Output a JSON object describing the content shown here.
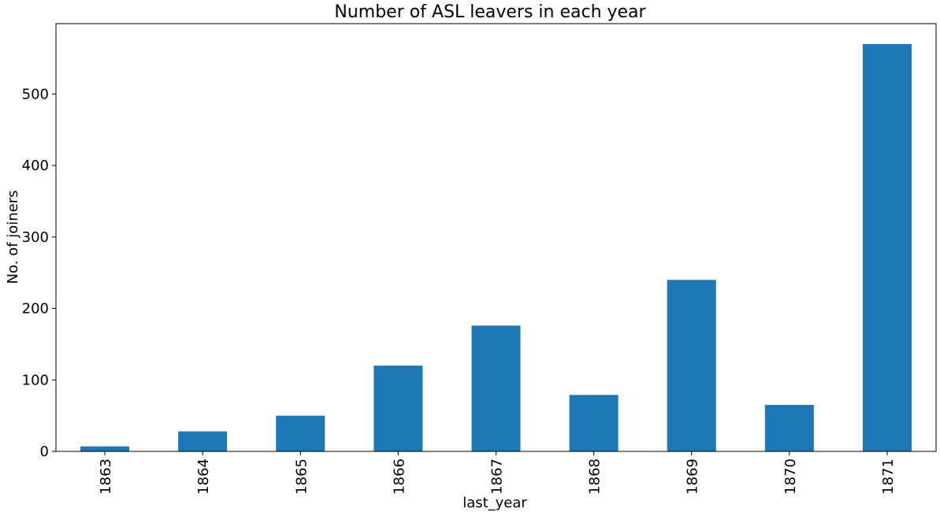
{
  "chart_data": {
    "type": "bar",
    "title": "Number of ASL leavers in each year",
    "xlabel": "last_year",
    "ylabel": "No. of joiners",
    "categories": [
      "1863",
      "1864",
      "1865",
      "1866",
      "1867",
      "1868",
      "1869",
      "1870",
      "1871"
    ],
    "values": [
      7,
      28,
      50,
      120,
      176,
      79,
      240,
      65,
      570
    ],
    "ylim": [
      0,
      598.5
    ],
    "yticks": [
      0,
      100,
      200,
      300,
      400,
      500
    ],
    "bar_color": "#1f77b4",
    "grid": false,
    "legend": false
  }
}
